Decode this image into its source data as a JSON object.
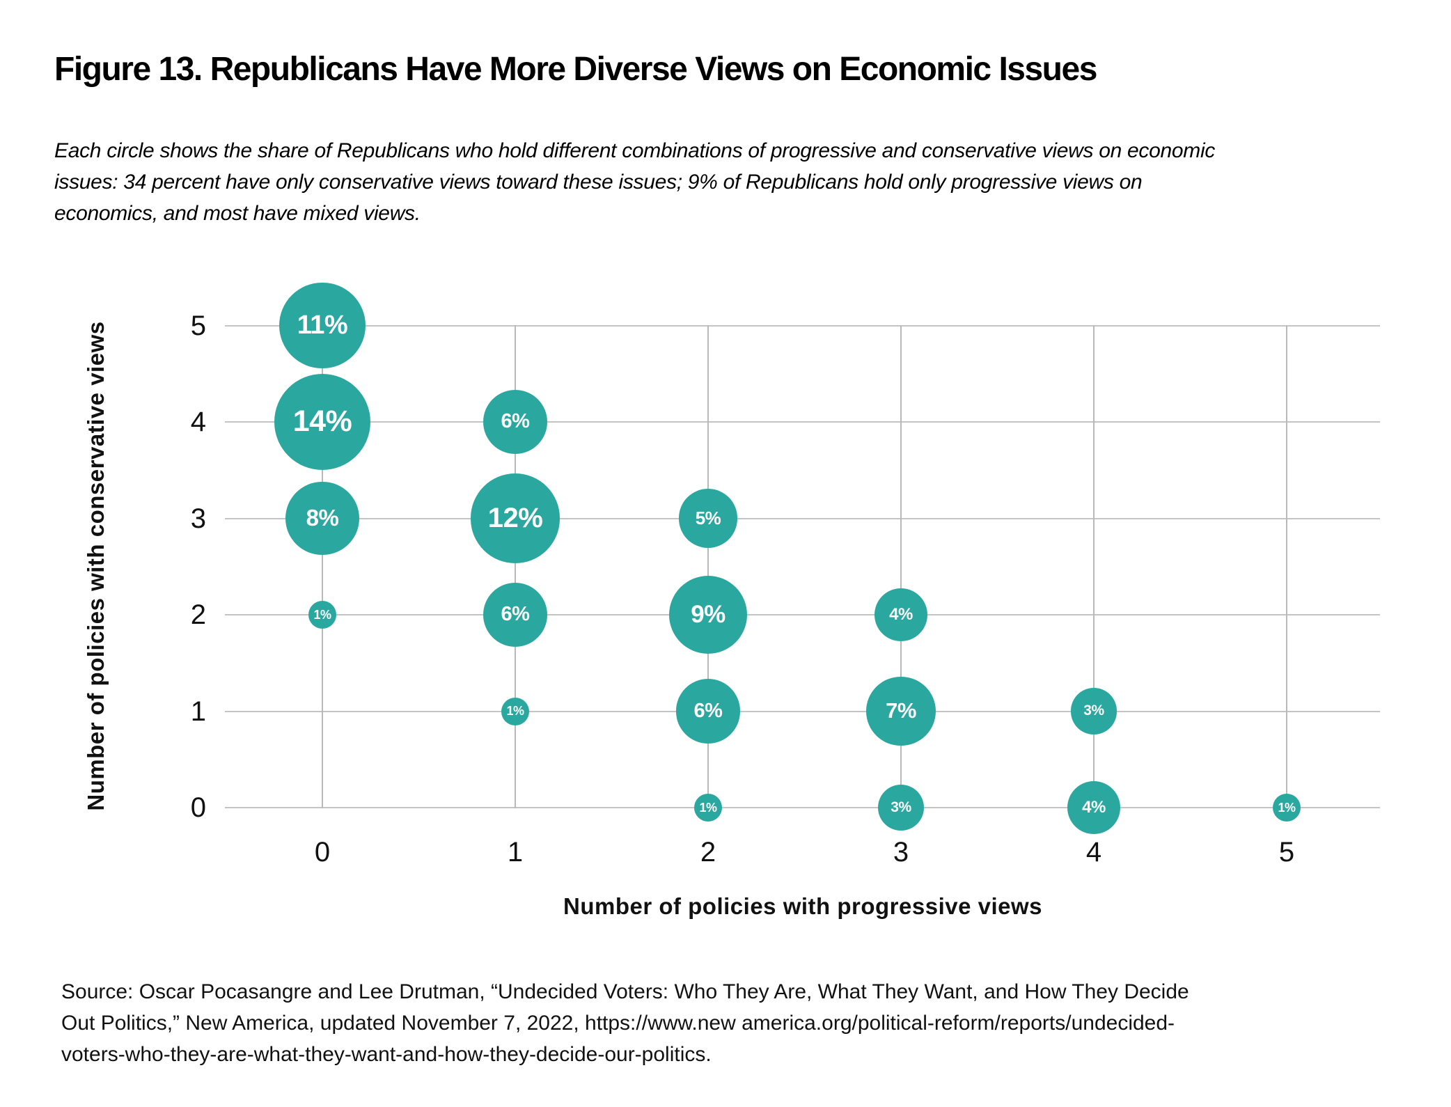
{
  "header": {
    "title": "Figure 13. Republicans Have More Diverse Views on Economic Issues",
    "description_lines": [
      "Each circle shows the share of Republicans who hold different combinations of progressive and conservative views on economic",
      "issues: 34 percent have only conservative views toward these issues; 9% of Republicans hold only progressive views on",
      "economics, and most have mixed views."
    ]
  },
  "chart_data": {
    "type": "scatter",
    "subtype": "bubble",
    "title": "",
    "xlabel": "Number of policies with progressive views",
    "ylabel": "Number of policies with conservative views",
    "x_ticks": [
      "0",
      "1",
      "2",
      "3",
      "4",
      "5"
    ],
    "y_ticks": [
      "0",
      "1",
      "2",
      "3",
      "4",
      "5"
    ],
    "xlim": [
      -0.5,
      5.5
    ],
    "ylim": [
      -0.5,
      5.5
    ],
    "grid": true,
    "legend": false,
    "bubble_color": "#2aa8a0",
    "bubble_label_color": "#ffffff",
    "gridline_color": "#c4c4c4",
    "points": [
      {
        "x": 0,
        "y": 5,
        "value": 11,
        "label": "11%"
      },
      {
        "x": 0,
        "y": 4,
        "value": 14,
        "label": "14%"
      },
      {
        "x": 0,
        "y": 3,
        "value": 8,
        "label": "8%"
      },
      {
        "x": 0,
        "y": 2,
        "value": 1,
        "label": "1%"
      },
      {
        "x": 1,
        "y": 4,
        "value": 6,
        "label": "6%"
      },
      {
        "x": 1,
        "y": 3,
        "value": 12,
        "label": "12%"
      },
      {
        "x": 1,
        "y": 2,
        "value": 6,
        "label": "6%"
      },
      {
        "x": 1,
        "y": 1,
        "value": 1,
        "label": "1%"
      },
      {
        "x": 2,
        "y": 3,
        "value": 5,
        "label": "5%"
      },
      {
        "x": 2,
        "y": 2,
        "value": 9,
        "label": "9%"
      },
      {
        "x": 2,
        "y": 1,
        "value": 6,
        "label": "6%"
      },
      {
        "x": 2,
        "y": 0,
        "value": 1,
        "label": "1%"
      },
      {
        "x": 3,
        "y": 2,
        "value": 4,
        "label": "4%"
      },
      {
        "x": 3,
        "y": 1,
        "value": 7,
        "label": "7%"
      },
      {
        "x": 3,
        "y": 0,
        "value": 3,
        "label": "3%"
      },
      {
        "x": 4,
        "y": 1,
        "value": 3,
        "label": "3%"
      },
      {
        "x": 4,
        "y": 0,
        "value": 4,
        "label": "4%"
      },
      {
        "x": 5,
        "y": 0,
        "value": 1,
        "label": "1%"
      }
    ]
  },
  "footer": {
    "source_lines": [
      "Source: Oscar Pocasangre and Lee Drutman, “Undecided Voters: Who They Are, What They Want, and How They Decide",
      "Out Politics,” New America, updated November 7, 2022, https://www.new america.org/political-reform/reports/undecided-",
      "voters-who-they-are-what-they-want-and-how-they-decide-our-politics."
    ]
  }
}
